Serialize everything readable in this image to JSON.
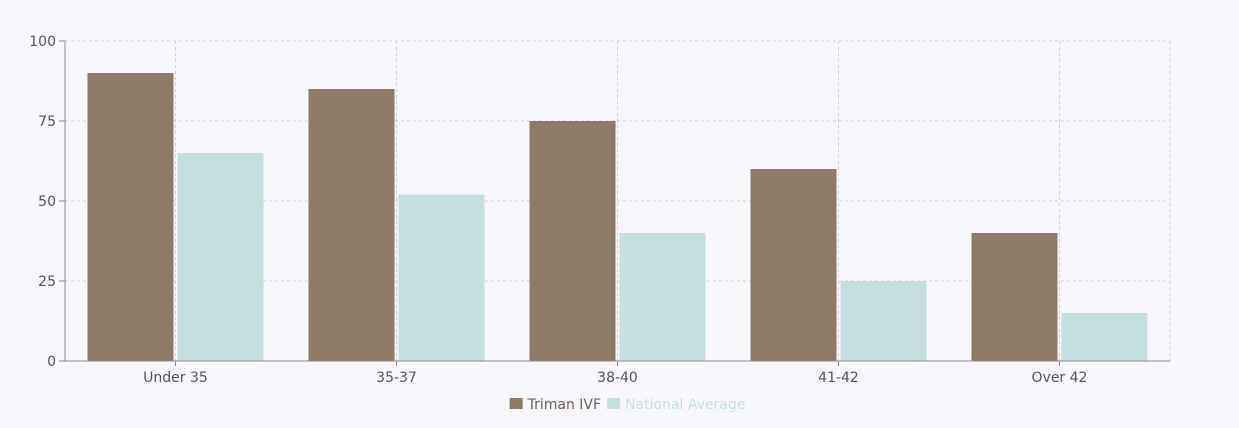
{
  "chart_data": {
    "type": "bar",
    "categories": [
      "Under 35",
      "35-37",
      "38-40",
      "41-42",
      "Over 42"
    ],
    "series": [
      {
        "name": "Triman IVF",
        "color": "#8d7a67",
        "values": [
          90,
          85,
          75,
          60,
          40
        ]
      },
      {
        "name": "National Average",
        "color": "#c5dfe0",
        "values": [
          65,
          52,
          40,
          25,
          15
        ]
      }
    ],
    "ylim": [
      0,
      100
    ],
    "yticks": [
      "0",
      "25",
      "50",
      "75",
      "100"
    ],
    "grid": true,
    "legend_position": "bottom-center",
    "colors": {
      "background": "#f7f6fb",
      "grid": "#cfcfd8",
      "axis": "#8a8a8a",
      "tick_text": "#555555"
    }
  }
}
